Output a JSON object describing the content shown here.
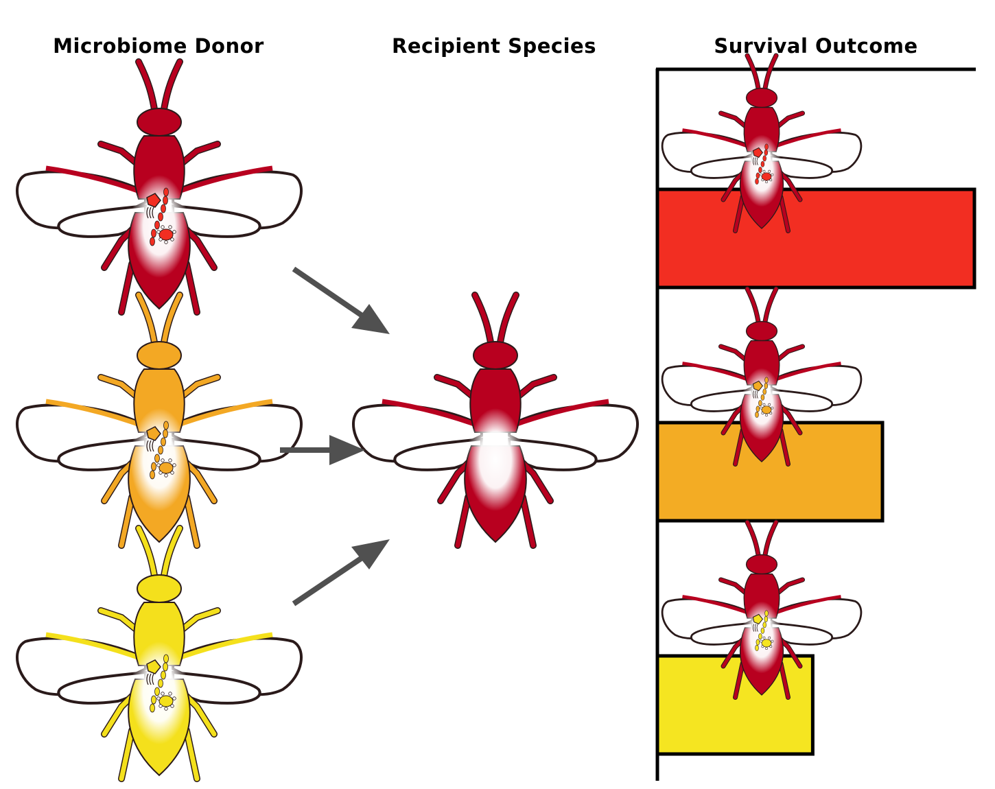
{
  "columns": {
    "donor": "Microbiome Donor",
    "recipient": "Recipient Species",
    "survival": "Survival Outcome"
  },
  "colors": {
    "donor_red": "#b8001f",
    "donor_orange": "#f3a824",
    "donor_yellow": "#f4e01c",
    "bar_red": "#f22e22",
    "bar_orange": "#f3ac24",
    "bar_yellow": "#f5e521",
    "arrow": "#505050",
    "outline": "#2a1a1a"
  },
  "donors": [
    {
      "id": "red",
      "icon": "wasp-red-donor-icon"
    },
    {
      "id": "orange",
      "icon": "wasp-orange-donor-icon"
    },
    {
      "id": "yellow",
      "icon": "wasp-yellow-donor-icon"
    }
  ],
  "recipient": {
    "icon": "wasp-recipient-icon"
  },
  "chart_data": {
    "type": "bar",
    "orientation": "horizontal",
    "categories": [
      "red donor",
      "orange donor",
      "yellow donor"
    ],
    "values": [
      1.0,
      0.71,
      0.49
    ],
    "xlim": [
      0,
      1
    ],
    "tick_labels": false,
    "colors": [
      "#f22e22",
      "#f3ac24",
      "#f5e521"
    ]
  }
}
